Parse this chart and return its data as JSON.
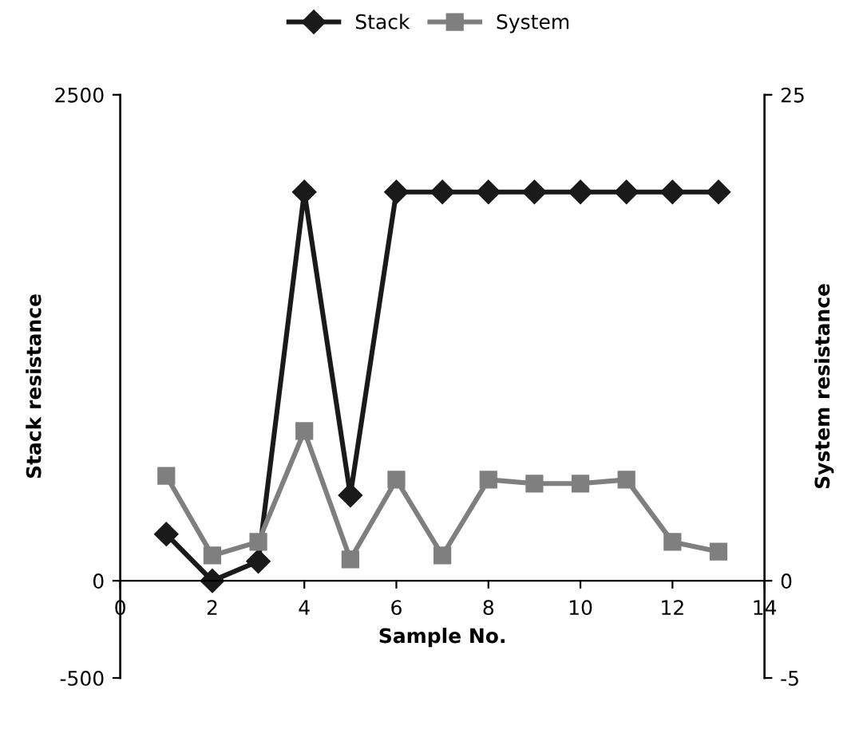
{
  "chart_data": {
    "type": "line",
    "xlabel": "Sample No.",
    "ylabel": "Stack resistance",
    "y2label": "System resistance",
    "x": [
      1,
      2,
      3,
      4,
      5,
      6,
      7,
      8,
      9,
      10,
      11,
      12,
      13
    ],
    "series": [
      {
        "name": "Stack",
        "color": "#1a1a1a",
        "marker": "diamond",
        "values": [
          240,
          0,
          100,
          2000,
          440,
          2000,
          2000,
          2000,
          2000,
          2000,
          2000,
          2000,
          2000
        ]
      },
      {
        "name": "System",
        "color": "#7f7f7f",
        "marker": "square",
        "axis": "y2",
        "values": [
          5.4,
          1.3,
          2.0,
          7.7,
          1.1,
          5.2,
          1.3,
          5.2,
          5.0,
          5.0,
          5.2,
          2.0,
          1.5
        ]
      }
    ],
    "xlim": [
      0,
      14
    ],
    "xticks": [
      0,
      2,
      4,
      6,
      8,
      10,
      12,
      14
    ],
    "ylim": [
      -500,
      2500
    ],
    "yticks": [
      -500,
      0,
      2500
    ],
    "y2lim": [
      -5,
      25
    ],
    "y2ticks": [
      -5,
      0,
      25
    ],
    "grid": false,
    "legend": "top",
    "line_style": "solid"
  }
}
